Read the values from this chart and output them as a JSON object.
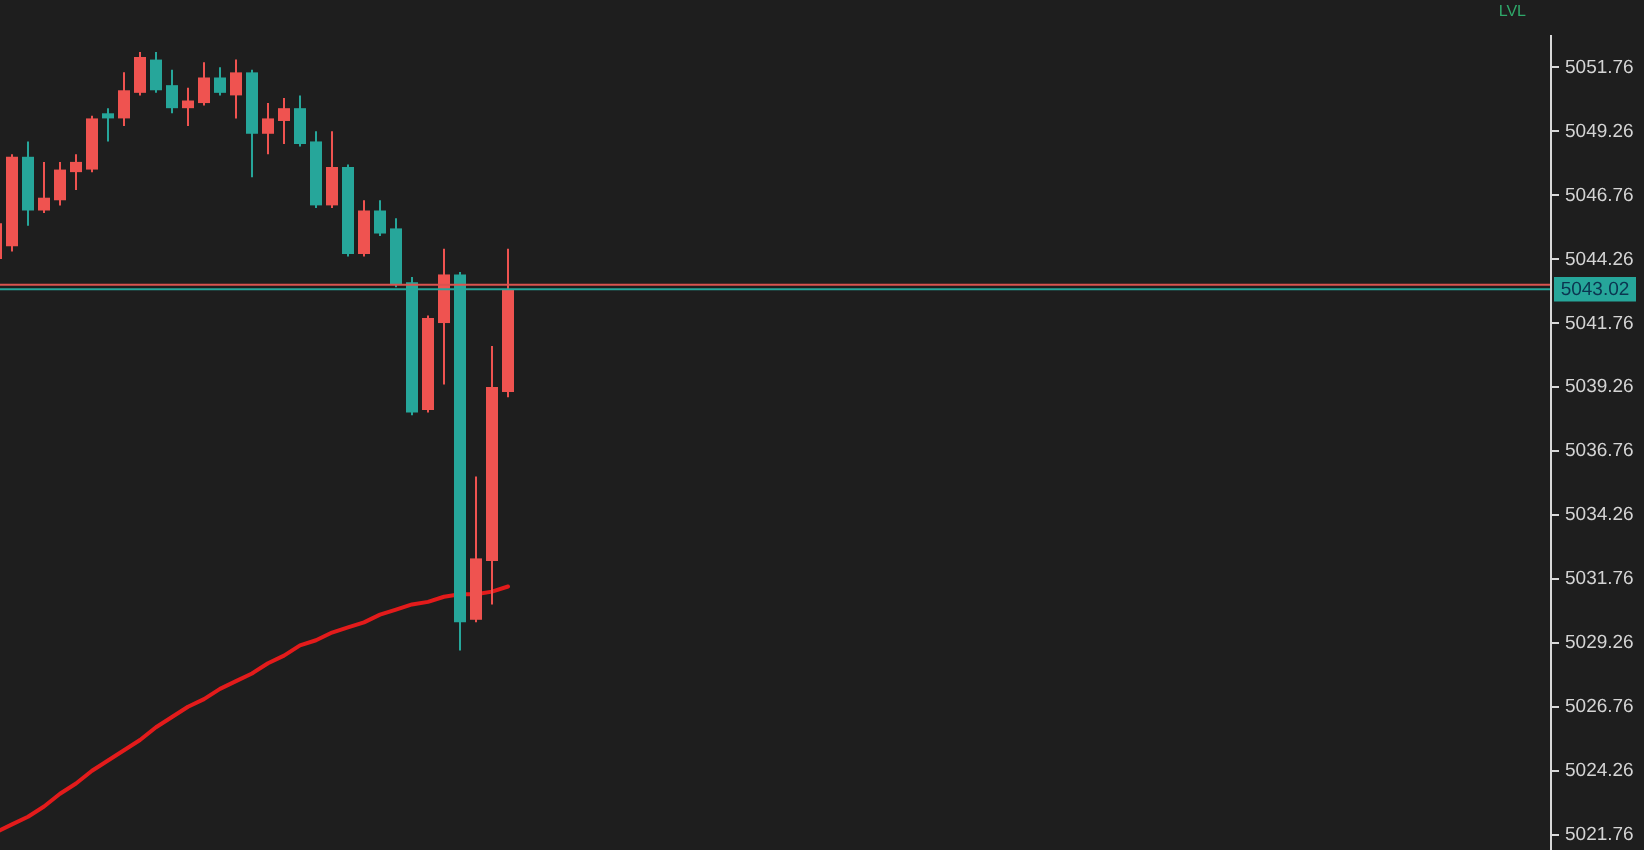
{
  "chart_data": {
    "type": "candlestick",
    "categories": [
      null,
      null,
      null,
      null,
      null,
      null,
      null,
      null,
      null,
      null,
      null,
      null,
      null,
      null,
      null,
      null,
      null,
      null,
      null,
      null,
      null,
      null,
      null,
      null,
      null,
      null,
      null,
      null,
      null,
      null,
      null,
      null,
      null,
      null,
      null,
      null,
      null,
      null,
      null,
      null,
      null,
      null,
      null,
      null,
      null,
      null,
      null,
      null,
      null,
      null,
      null,
      null,
      null,
      null,
      null,
      null,
      null,
      null,
      null,
      null,
      null,
      null,
      null,
      null,
      null,
      null,
      null,
      null,
      null,
      null,
      null,
      null,
      null,
      null,
      null,
      null,
      null,
      null,
      null,
      null,
      null,
      null,
      null,
      null,
      null,
      null,
      null,
      null,
      null,
      null,
      null,
      null,
      null,
      null,
      null,
      null,
      null
    ],
    "ohlc": [
      [
        5044.2,
        5045.8,
        5044.1,
        5045.6
      ],
      [
        5044.7,
        5048.3,
        5044.5,
        5048.2
      ],
      [
        5048.2,
        5048.8,
        5045.5,
        5046.1
      ],
      [
        5046.1,
        5048.0,
        5046.0,
        5046.6
      ],
      [
        5046.5,
        5048.0,
        5046.3,
        5047.7
      ],
      [
        5047.6,
        5048.3,
        5046.9,
        5048.0
      ],
      [
        5047.7,
        5049.8,
        5047.6,
        5049.7
      ],
      [
        5049.9,
        5050.1,
        5048.8,
        5049.7
      ],
      [
        5049.7,
        5051.5,
        5049.4,
        5050.8
      ],
      [
        5050.7,
        5052.3,
        5050.6,
        5052.1
      ],
      [
        5052.0,
        5052.3,
        5050.7,
        5050.8
      ],
      [
        5051.0,
        5051.6,
        5049.9,
        5050.1
      ],
      [
        5050.1,
        5050.9,
        5049.4,
        5050.4
      ],
      [
        5050.3,
        5051.9,
        5050.2,
        5051.3
      ],
      [
        5051.3,
        5051.7,
        5050.6,
        5050.7
      ],
      [
        5050.6,
        5052.0,
        5049.7,
        5051.5
      ],
      [
        5051.5,
        5051.6,
        5047.4,
        5049.1
      ],
      [
        5049.1,
        5050.3,
        5048.3,
        5049.7
      ],
      [
        5049.6,
        5050.5,
        5048.7,
        5050.1
      ],
      [
        5050.1,
        5050.6,
        5048.6,
        5048.7
      ],
      [
        5048.8,
        5049.2,
        5046.2,
        5046.3
      ],
      [
        5046.3,
        5049.2,
        5046.2,
        5047.8
      ],
      [
        5047.8,
        5047.9,
        5044.3,
        5044.4
      ],
      [
        5044.4,
        5046.5,
        5044.3,
        5046.1
      ],
      [
        5046.1,
        5046.5,
        5045.1,
        5045.2
      ],
      [
        5045.4,
        5045.8,
        5043.1,
        5043.2
      ],
      [
        5043.3,
        5043.5,
        5038.1,
        5038.2
      ],
      [
        5038.3,
        5042.0,
        5038.2,
        5041.9
      ],
      [
        5041.7,
        5044.6,
        5039.3,
        5043.6
      ],
      [
        5043.6,
        5043.7,
        5028.9,
        5030.0
      ],
      [
        5030.1,
        5035.7,
        5030.0,
        5032.5
      ],
      [
        5032.4,
        5040.8,
        5030.7,
        5039.2
      ],
      [
        5039.0,
        5044.6,
        5038.8,
        5043.02
      ],
      null,
      null,
      null,
      null,
      null,
      null,
      null,
      null,
      null,
      null,
      null,
      null,
      null,
      null,
      null,
      null,
      null,
      null,
      null,
      null,
      null,
      null,
      null,
      null,
      null,
      null,
      null,
      null,
      null,
      null,
      null,
      null,
      null,
      null,
      null,
      null,
      null,
      null,
      null,
      null,
      null,
      null,
      null,
      null,
      null,
      null,
      null,
      null,
      null,
      null,
      null,
      null,
      null,
      null,
      null,
      null,
      null,
      null,
      null,
      null,
      null,
      null,
      null,
      null
    ],
    "colors": [
      "#ef5350",
      "#ef5350",
      "#26a69a",
      "#ef5350",
      "#ef5350",
      "#ef5350",
      "#ef5350",
      "#26a69a",
      "#ef5350",
      "#ef5350",
      "#26a69a",
      "#26a69a",
      "#ef5350",
      "#ef5350",
      "#26a69a",
      "#ef5350",
      "#26a69a",
      "#ef5350",
      "#ef5350",
      "#26a69a",
      "#26a69a",
      "#ef5350",
      "#26a69a",
      "#ef5350",
      "#26a69a",
      "#26a69a",
      "#26a69a",
      "#ef5350",
      "#ef5350",
      "#26a69a",
      "#ef5350",
      "#ef5350",
      "#ef5350",
      null,
      null,
      null,
      null,
      null,
      null,
      null,
      null,
      null,
      null,
      null,
      null,
      null,
      null,
      null,
      null,
      null,
      null,
      null,
      null,
      null,
      null,
      null,
      null,
      null,
      null,
      null,
      null,
      null,
      null,
      null,
      null,
      null,
      null,
      null,
      null,
      null,
      null,
      null,
      null,
      null,
      null,
      null,
      null,
      null,
      null,
      null,
      null,
      null,
      null,
      null,
      null,
      null,
      null,
      null,
      null,
      null,
      null,
      null,
      null,
      null,
      null,
      null,
      null
    ],
    "series": [
      {
        "type": "line",
        "color": "#e31b1b",
        "values": [
          5021.8,
          5022.1,
          5022.4,
          5022.8,
          5023.3,
          5023.7,
          5024.2,
          5024.6,
          5025.0,
          5025.4,
          5025.9,
          5026.3,
          5026.7,
          5027.0,
          5027.4,
          5027.7,
          5028.0,
          5028.4,
          5028.7,
          5029.1,
          5029.3,
          5029.6,
          5029.8,
          5030.0,
          5030.3,
          5030.5,
          5030.7,
          5030.8,
          5031.0,
          5031.1,
          5031.1,
          5031.2,
          5031.4,
          null,
          null,
          null,
          null,
          null,
          null,
          null,
          null,
          null,
          null,
          null,
          null,
          null,
          null,
          null,
          null,
          null,
          null,
          null,
          null,
          null,
          null,
          null,
          null,
          null,
          null,
          null,
          null,
          null,
          null,
          null,
          null,
          null,
          null,
          null,
          null,
          null,
          null,
          null,
          null,
          null,
          null,
          null,
          null,
          null,
          null,
          null,
          null,
          null,
          null,
          null,
          null,
          null,
          null,
          null,
          null,
          null,
          null,
          null,
          null,
          null,
          null,
          null,
          null
        ]
      }
    ],
    "ylim": [
      5021.1,
      5053.0
    ],
    "yticks": [
      5021.76,
      5024.26,
      5026.76,
      5029.26,
      5031.76,
      5034.26,
      5036.76,
      5039.26,
      5041.76,
      5044.26,
      5046.76,
      5049.26,
      5051.76
    ],
    "ref_lines": [
      {
        "axis": "y",
        "value": 5043.2,
        "color": "#d9534f"
      },
      {
        "axis": "y",
        "value": 5043.02,
        "label": "5043.02",
        "color": "#26a69a"
      }
    ],
    "annotations": [
      "LVL"
    ]
  }
}
